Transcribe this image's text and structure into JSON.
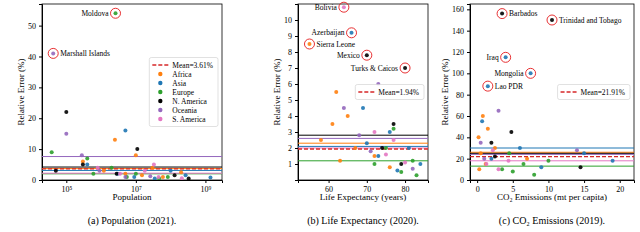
{
  "chart_data": [
    {
      "type": "scatter",
      "title": "(a) Population (2021).",
      "x_label": "Population",
      "y_label": "Relative Error (%)",
      "log": "x",
      "grid": false,
      "legend": "center right",
      "marker": "circle",
      "xlim": [
        20000,
        3000000000
      ],
      "xticks": [
        {
          "value": 100000,
          "label": "10⁵"
        },
        {
          "value": 10000000,
          "label": "10⁷"
        },
        {
          "value": 1000000000,
          "label": "10⁹"
        }
      ],
      "ylim": [
        0,
        57
      ],
      "yticks": [
        0,
        10,
        20,
        30,
        40,
        50
      ],
      "mean": {
        "label": "Mean=3.61%",
        "value": 3.61,
        "color": "#d62728",
        "line_style": "dashed"
      },
      "series": [
        {
          "name": "Africa",
          "color": "#ff7f0e",
          "mean": 3.7,
          "x": [
            300000,
            1200000,
            5000000,
            15000000,
            30000000,
            60000000,
            200000000,
            10000000,
            2500000
          ],
          "values": [
            6,
            3,
            2,
            1.5,
            4,
            1,
            2.5,
            8,
            13
          ]
        },
        {
          "name": "Asia",
          "color": "#1f77b4",
          "mean": 3.1,
          "x": [
            400000,
            3000000,
            9000000,
            35000000,
            100000000,
            270000000,
            1400000000,
            5000000
          ],
          "values": [
            5,
            2,
            1,
            0.5,
            3,
            1.5,
            0.8,
            16
          ]
        },
        {
          "name": "Europe",
          "color": "#2ca02c",
          "mean": 2.0,
          "x": [
            38000,
            600000,
            2600000,
            2000000,
            5500000,
            10000000,
            47000000,
            83000000,
            400000
          ],
          "values": [
            9,
            2,
            54,
            4,
            1,
            2,
            0.5,
            1,
            7
          ]
        },
        {
          "name": "N. America",
          "color": "#000000",
          "mean": 4.2,
          "x": [
            50000,
            100000,
            300000,
            2800000,
            11000000,
            130000000,
            330000000
          ],
          "values": [
            3,
            22,
            5,
            2,
            10,
            1.5,
            0.5
          ]
        },
        {
          "name": "Oceania",
          "color": "#9467bd",
          "mean": 7.6,
          "x": [
            42000,
            100000,
            280000,
            900000,
            5000000,
            26000000
          ],
          "values": [
            41,
            15,
            8,
            3,
            1,
            1.2
          ]
        },
        {
          "name": "S. America",
          "color": "#e377c2",
          "mean": 2.2,
          "x": [
            800000,
            3500000,
            18000000,
            45000000,
            210000000,
            33000000
          ],
          "values": [
            4,
            2,
            3,
            1,
            0.6,
            5
          ]
        }
      ],
      "annotations": [
        {
          "text": "Moldova",
          "x": 2600000,
          "y": 54
        },
        {
          "text": "Marshall Islands",
          "x": 42000,
          "y": 41
        }
      ]
    },
    {
      "type": "scatter",
      "title": "(b) Life Expectancy (2020).",
      "x_label": "Life Expectancy (years)",
      "y_label": "Relative Error (%)",
      "grid": false,
      "legend": "center right",
      "marker": "circle",
      "xlim": [
        52,
        86
      ],
      "xticks": [
        60,
        70,
        80
      ],
      "ylim": [
        0,
        11
      ],
      "yticks": [
        1,
        2,
        3,
        4,
        5,
        6,
        7,
        8,
        9,
        10
      ],
      "mean": {
        "label": "Mean=1.94%",
        "value": 1.94,
        "color": "#d62728",
        "line_style": "dashed"
      },
      "series": [
        {
          "color": "#ff7f0e",
          "mean": 2.3,
          "x": [
            55,
            58,
            61,
            63,
            65,
            67,
            72,
            76,
            62
          ],
          "values": [
            8.5,
            2.5,
            3.5,
            1.2,
            4,
            2,
            1.5,
            0.8,
            5.5
          ]
        },
        {
          "color": "#1f77b4",
          "mean": 2.1,
          "x": [
            66,
            70,
            73,
            76,
            78,
            84,
            69,
            81
          ],
          "values": [
            9.2,
            2.3,
            1.5,
            3,
            0.6,
            1,
            4.5,
            2
          ]
        },
        {
          "color": "#2ca02c",
          "mean": 1.2,
          "x": [
            72,
            75,
            79,
            82,
            83,
            77
          ],
          "values": [
            1,
            2,
            0.5,
            1.2,
            0.3,
            3.2
          ]
        },
        {
          "color": "#000000",
          "mean": 2.8,
          "x": [
            70,
            80,
            74,
            77,
            79
          ],
          "values": [
            7.8,
            7,
            2,
            3.5,
            1
          ]
        },
        {
          "color": "#9467bd",
          "mean": 2.6,
          "x": [
            64,
            68,
            71,
            82,
            73
          ],
          "values": [
            4.5,
            2.8,
            1.8,
            0.7,
            6
          ]
        },
        {
          "color": "#e377c2",
          "mean": 2.0,
          "x": [
            64,
            72,
            75,
            77,
            80
          ],
          "values": [
            10.8,
            3,
            1.6,
            2.5,
            1.1
          ]
        }
      ],
      "annotations": [
        {
          "text": "Bolivia",
          "x": 64,
          "y": 10.8
        },
        {
          "text": "Azerbaijan",
          "x": 66,
          "y": 9.2
        },
        {
          "text": "Sierra Leone",
          "x": 55,
          "y": 8.5
        },
        {
          "text": "Mexico",
          "x": 70,
          "y": 7.8
        },
        {
          "text": "Turks & Caicos",
          "x": 80,
          "y": 7
        }
      ]
    },
    {
      "type": "scatter",
      "title": "(c) CO₂ Emissions (2019).",
      "x_label": "CO₂ Emissions (mt per capita)",
      "y_label": "Relative Error (%)",
      "grid": false,
      "legend": "center right",
      "marker": "circle",
      "xlim": [
        -1,
        22
      ],
      "xticks": [
        0,
        5,
        10,
        15,
        20
      ],
      "ylim": [
        0,
        165
      ],
      "yticks": [
        0,
        20,
        40,
        60,
        80,
        100,
        120,
        140,
        160
      ],
      "mean": {
        "label": "Mean=21.91%",
        "value": 21.91,
        "color": "#d62728",
        "line_style": "dashed"
      },
      "series": [
        {
          "color": "#ff7f0e",
          "mean": 26,
          "x": [
            0.2,
            0.5,
            0.8,
            1.2,
            2.5,
            7,
            0.3,
            1.5
          ],
          "values": [
            40,
            25,
            60,
            15,
            30,
            20,
            10,
            48
          ]
        },
        {
          "color": "#1f77b4",
          "mean": 30,
          "x": [
            4,
            7.5,
            1.5,
            2,
            6,
            9,
            15,
            19,
            0.7
          ],
          "values": [
            115,
            100,
            88,
            20,
            30,
            12,
            25,
            18,
            55
          ]
        },
        {
          "color": "#2ca02c",
          "mean": 13,
          "x": [
            3.5,
            5,
            6.5,
            8,
            10,
            4.5
          ],
          "values": [
            10,
            8,
            15,
            5,
            18,
            25
          ]
        },
        {
          "color": "#000000",
          "mean": 25,
          "x": [
            3.5,
            10.5,
            2,
            4.8,
            14.5,
            2.5
          ],
          "values": [
            156,
            150,
            35,
            45,
            12,
            22
          ]
        },
        {
          "color": "#9467bd",
          "mean": 24,
          "x": [
            0.5,
            1,
            14,
            3
          ],
          "values": [
            35,
            20,
            28,
            65
          ]
        },
        {
          "color": "#e377c2",
          "mean": 18,
          "x": [
            1.3,
            2.2,
            3,
            4.4
          ],
          "values": [
            15,
            28,
            10,
            18
          ]
        }
      ],
      "annotations": [
        {
          "text": "Barbados",
          "x": 3.5,
          "y": 156
        },
        {
          "text": "Trinidad and Tobago",
          "x": 10.5,
          "y": 150
        },
        {
          "text": "Iraq",
          "x": 4,
          "y": 115
        },
        {
          "text": "Mongolia",
          "x": 7.5,
          "y": 100
        },
        {
          "text": "Lao PDR",
          "x": 1.5,
          "y": 88
        }
      ]
    }
  ]
}
